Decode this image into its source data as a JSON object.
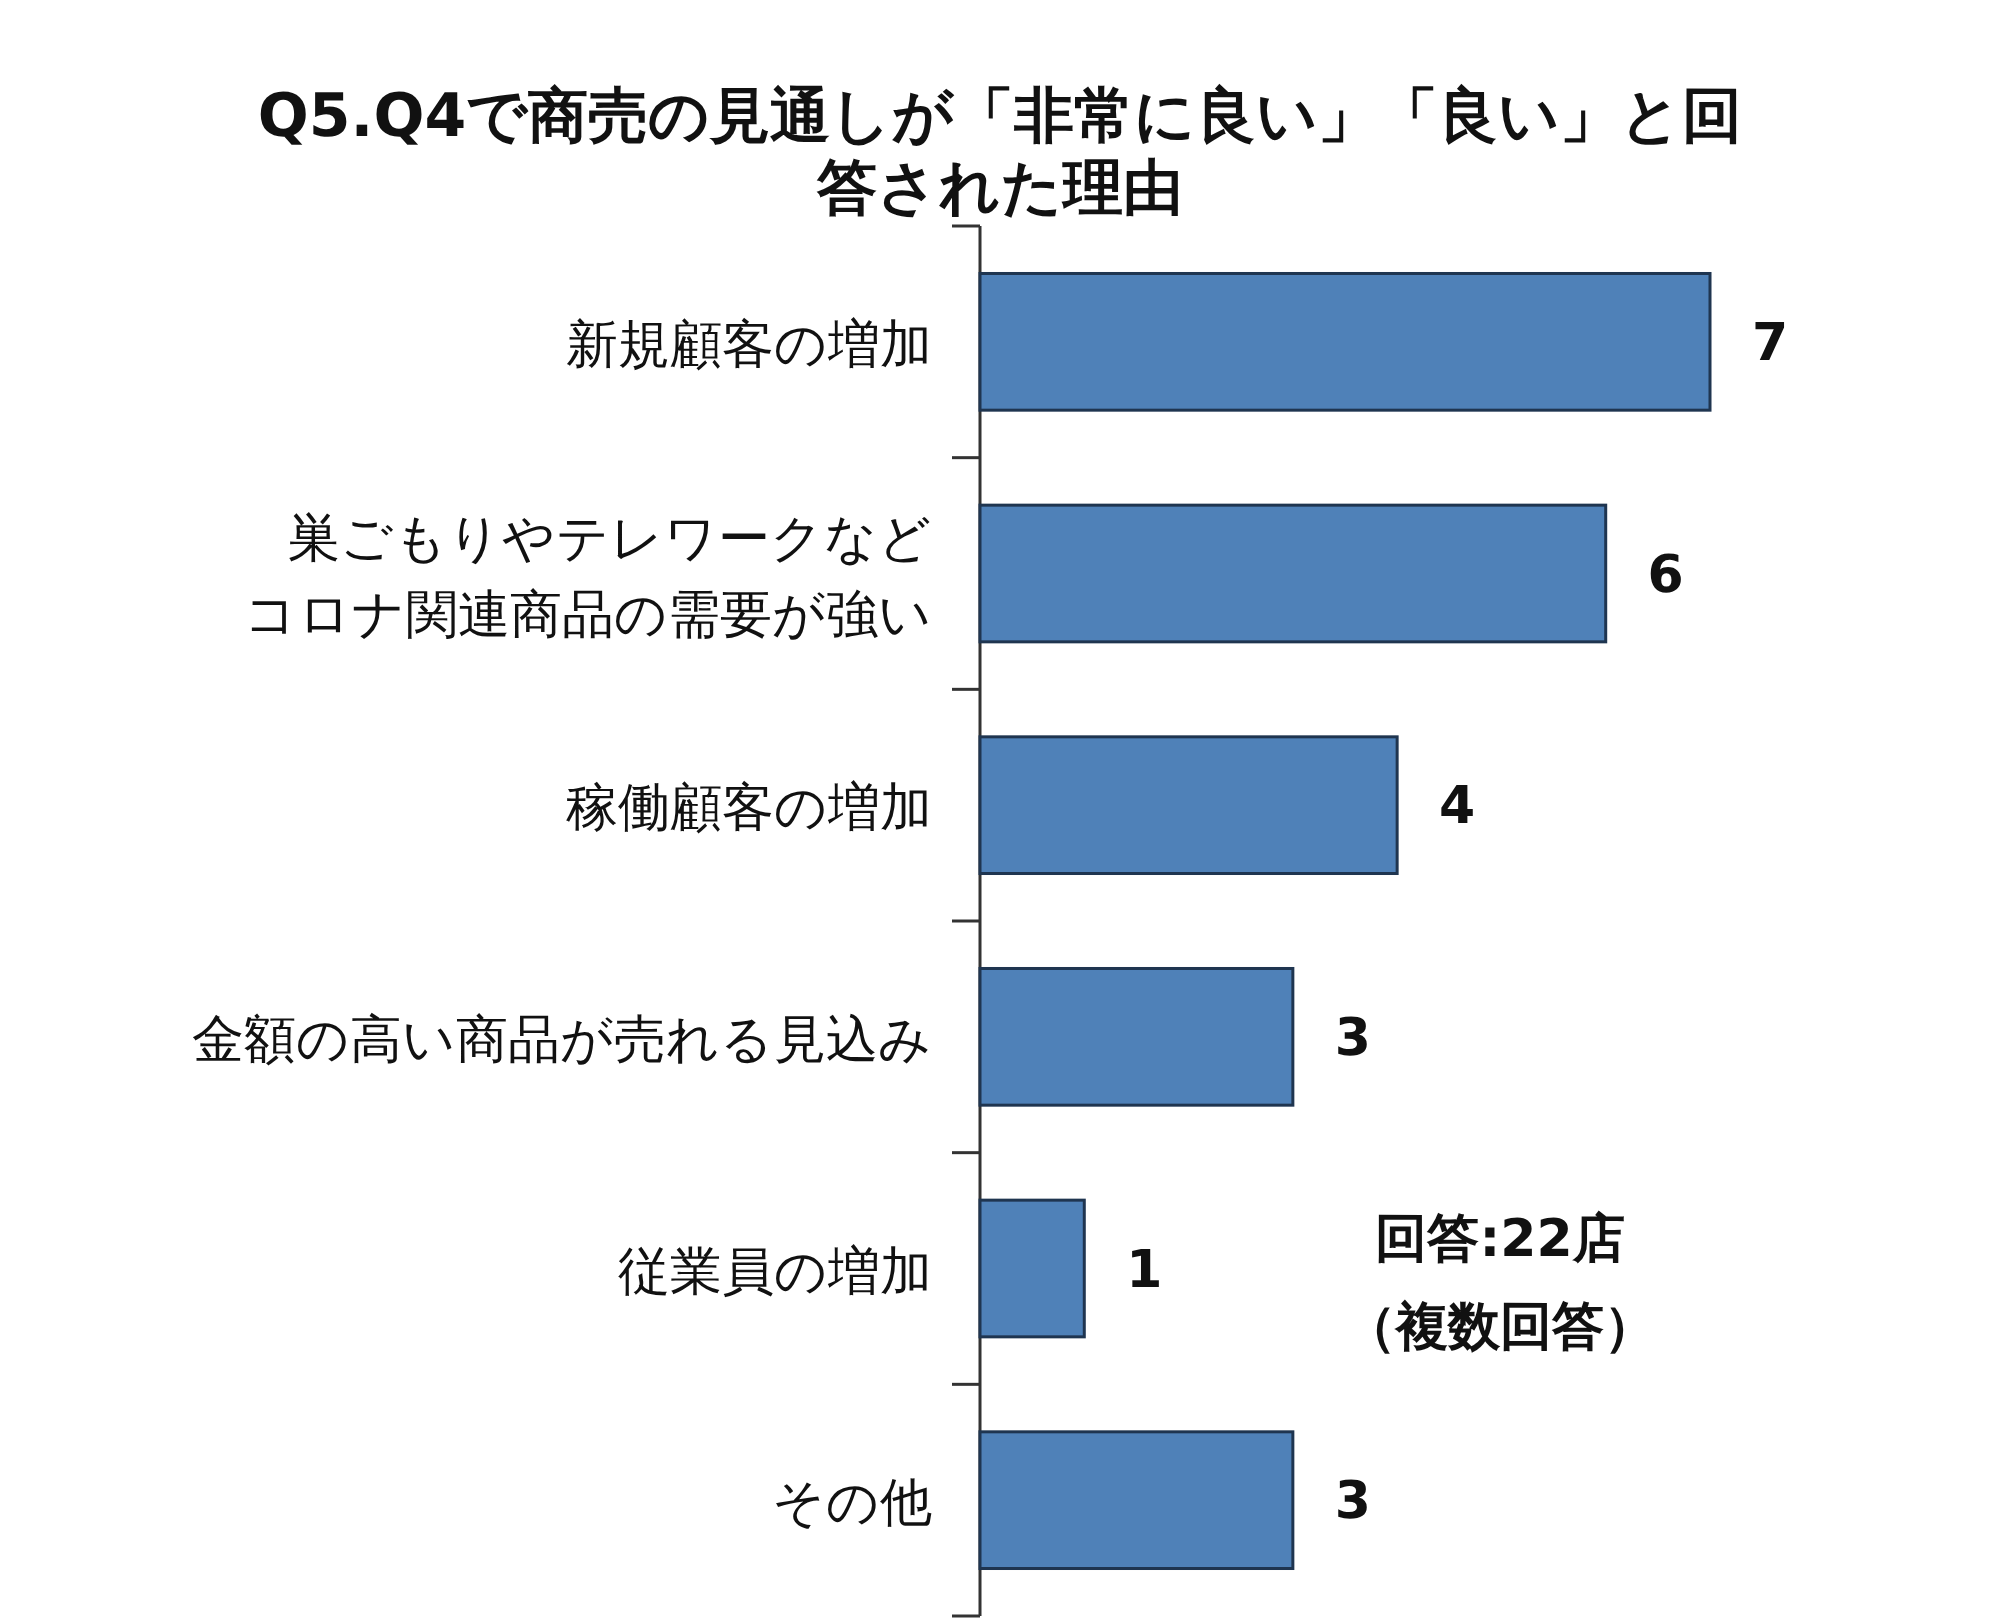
{
  "chart_data": {
    "type": "bar",
    "orientation": "horizontal",
    "title": "Q5.Q4で商売の見通しが「非常に良い」「良い」と回答された理由",
    "categories": [
      "新規顧客の増加",
      "巣ごもりやテレワークなどコロナ関連商品の需要が強い",
      "稼働顧客の増加",
      "金額の高い商品が売れる見込み",
      "従業員の増加",
      "その他"
    ],
    "values": [
      7,
      6,
      4,
      3,
      1,
      3
    ],
    "color": "#4f81b8",
    "data_labels": true,
    "annotations": [
      "回答:22店",
      "（複数回答）"
    ]
  }
}
